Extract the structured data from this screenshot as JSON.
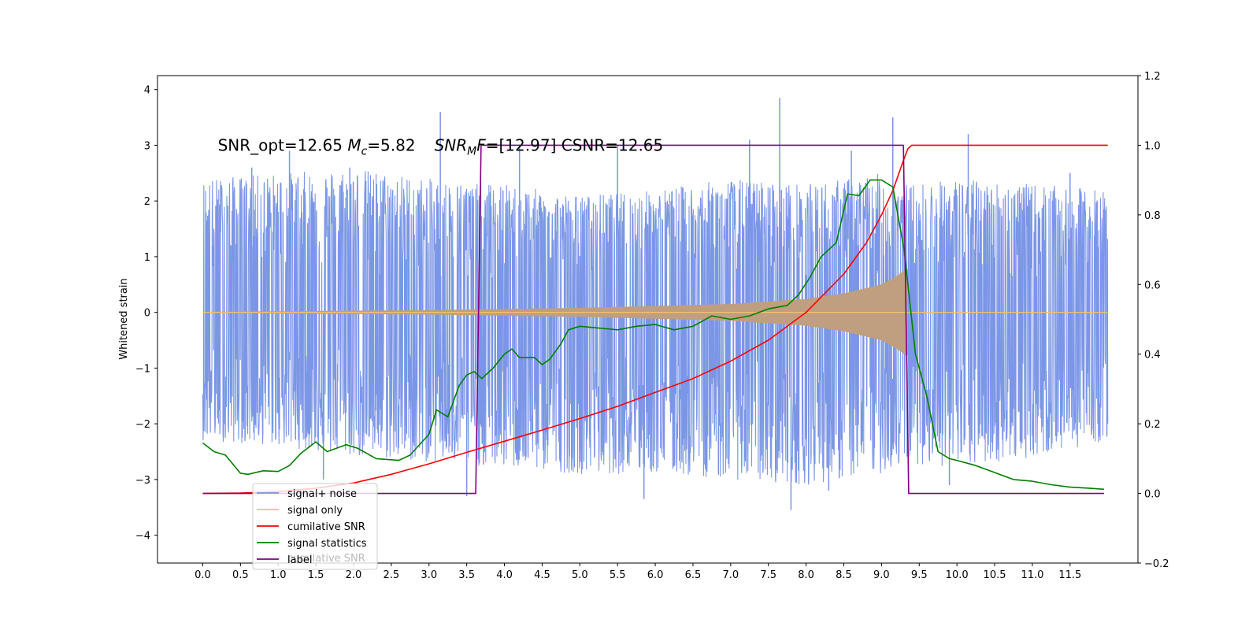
{
  "chart_data": {
    "type": "line",
    "title": "",
    "xlabel": "",
    "ylabel": "Whitened strain",
    "ylabel_right": "",
    "xlim": [
      -0.6,
      12.4
    ],
    "ylim": [
      -4.5,
      4.25
    ],
    "ylim_right": [
      -0.2,
      1.2
    ],
    "x_ticks": [
      0.0,
      0.5,
      1.0,
      1.5,
      2.0,
      2.5,
      3.0,
      3.5,
      4.0,
      4.5,
      5.0,
      5.5,
      6.0,
      6.5,
      7.0,
      7.5,
      8.0,
      8.5,
      9.0,
      9.5,
      10.0,
      10.5,
      11.0,
      11.5
    ],
    "x_tick_labels": [
      "0.0",
      "0.5",
      "1.0",
      "1.5",
      "2.0",
      "2.5",
      "3.0",
      "3.5",
      "4.0",
      "4.5",
      "5.0",
      "5.5",
      "6.0",
      "6.5",
      "7.0",
      "7.5",
      "8.0",
      "8.5",
      "9.0",
      "9.5",
      "10.0",
      "10.5",
      "11.0",
      "11.5"
    ],
    "y_ticks": [
      -4,
      -3,
      -2,
      -1,
      0,
      1,
      2,
      3,
      4
    ],
    "y_tick_labels": [
      "−4",
      "−3",
      "−2",
      "−1",
      "0",
      "1",
      "2",
      "3",
      "4"
    ],
    "y_ticks_right": [
      -0.2,
      0.0,
      0.2,
      0.4,
      0.6,
      0.8,
      1.0,
      1.2
    ],
    "y_tick_labels_right": [
      "−0.2",
      "0.0",
      "0.2",
      "0.4",
      "0.6",
      "0.8",
      "1.0",
      "1.2"
    ],
    "annotation": {
      "x": 0.2,
      "y": 3.0,
      "prefix": "SNR_opt=12.65 ",
      "mc_symbol": "M",
      "mc_sub": "c",
      "mc_value": "=5.82",
      "snr_symbol": "SNR",
      "snr_sub": "M",
      "snr_symbol2": "F",
      "snr_value": "=[12.97] CSNR=12.65"
    },
    "grid": false,
    "legend_position": "lower-left",
    "series": [
      {
        "name": "signal+ noise",
        "axis": "left",
        "color": "#7b96e6",
        "kind": "noise-envelope",
        "x_range": [
          0.0,
          12.0
        ],
        "envelope_x": [
          0.0,
          1.0,
          2.0,
          3.0,
          4.0,
          5.0,
          6.0,
          7.0,
          8.0,
          9.0,
          9.35,
          10.0,
          11.0,
          12.0
        ],
        "envelope_upper": [
          2.4,
          2.5,
          2.6,
          2.4,
          2.3,
          2.1,
          2.2,
          2.4,
          2.3,
          2.5,
          2.3,
          2.4,
          2.3,
          2.2
        ],
        "envelope_lower": [
          -2.3,
          -2.4,
          -2.6,
          -2.7,
          -2.8,
          -2.9,
          -2.9,
          -3.0,
          -3.1,
          -2.9,
          -2.7,
          -2.8,
          -2.6,
          -2.3
        ],
        "peaks": [
          {
            "x": 0.65,
            "y": 2.6
          },
          {
            "x": 1.15,
            "y": 2.9
          },
          {
            "x": 1.95,
            "y": 2.6
          },
          {
            "x": 3.15,
            "y": 3.6
          },
          {
            "x": 4.2,
            "y": 3.0
          },
          {
            "x": 5.5,
            "y": 3.0
          },
          {
            "x": 7.25,
            "y": 3.1
          },
          {
            "x": 7.65,
            "y": 3.85
          },
          {
            "x": 8.6,
            "y": 2.9
          },
          {
            "x": 9.15,
            "y": 3.5
          },
          {
            "x": 10.15,
            "y": 3.2
          },
          {
            "x": 11.5,
            "y": 2.5
          },
          {
            "x": 3.5,
            "y": -3.3
          },
          {
            "x": 5.85,
            "y": -3.35
          },
          {
            "x": 7.8,
            "y": -3.55
          },
          {
            "x": 8.3,
            "y": -3.2
          },
          {
            "x": 9.9,
            "y": -3.1
          },
          {
            "x": 1.6,
            "y": -3.0
          }
        ]
      },
      {
        "name": "signal only",
        "axis": "left",
        "color": "#f5c06a",
        "kind": "chirp",
        "x_range": [
          0.0,
          12.0
        ],
        "chirp_end": 9.35,
        "amp_x": [
          0.0,
          3.0,
          5.0,
          7.0,
          8.0,
          8.5,
          9.0,
          9.2,
          9.33
        ],
        "amp": [
          0.01,
          0.04,
          0.08,
          0.15,
          0.24,
          0.34,
          0.5,
          0.65,
          0.78
        ]
      },
      {
        "name": "cumilative SNR",
        "axis": "right",
        "color": "#ff0000",
        "x": [
          0.0,
          0.5,
          1.0,
          1.5,
          2.0,
          2.5,
          3.0,
          3.5,
          4.0,
          4.5,
          5.0,
          5.5,
          6.0,
          6.5,
          7.0,
          7.5,
          8.0,
          8.5,
          8.8,
          9.0,
          9.15,
          9.28,
          9.35,
          9.4,
          12.0
        ],
        "y": [
          0.0,
          0.001,
          0.005,
          0.015,
          0.03,
          0.055,
          0.085,
          0.118,
          0.15,
          0.182,
          0.215,
          0.25,
          0.29,
          0.33,
          0.38,
          0.44,
          0.52,
          0.63,
          0.72,
          0.8,
          0.87,
          0.95,
          0.99,
          1.0,
          1.0
        ]
      },
      {
        "name": "signal statistics",
        "axis": "right",
        "color": "#008000",
        "x": [
          0.0,
          0.15,
          0.3,
          0.5,
          0.6,
          0.8,
          1.0,
          1.15,
          1.3,
          1.5,
          1.65,
          1.9,
          2.05,
          2.3,
          2.6,
          2.75,
          3.0,
          3.1,
          3.25,
          3.4,
          3.5,
          3.6,
          3.7,
          3.85,
          4.0,
          4.1,
          4.2,
          4.4,
          4.5,
          4.6,
          4.75,
          4.85,
          5.0,
          5.25,
          5.5,
          5.75,
          6.0,
          6.25,
          6.5,
          6.75,
          7.0,
          7.25,
          7.5,
          7.75,
          7.9,
          8.05,
          8.2,
          8.4,
          8.55,
          8.7,
          8.85,
          9.0,
          9.15,
          9.3,
          9.45,
          9.6,
          9.75,
          9.9,
          10.0,
          10.25,
          10.5,
          10.75,
          11.0,
          11.25,
          11.5,
          11.75,
          11.95
        ],
        "y": [
          0.145,
          0.12,
          0.11,
          0.058,
          0.055,
          0.065,
          0.063,
          0.08,
          0.115,
          0.148,
          0.12,
          0.14,
          0.13,
          0.1,
          0.095,
          0.11,
          0.17,
          0.24,
          0.22,
          0.31,
          0.34,
          0.35,
          0.33,
          0.36,
          0.4,
          0.415,
          0.39,
          0.39,
          0.37,
          0.385,
          0.43,
          0.47,
          0.48,
          0.475,
          0.47,
          0.48,
          0.485,
          0.47,
          0.48,
          0.51,
          0.5,
          0.51,
          0.53,
          0.54,
          0.57,
          0.62,
          0.68,
          0.72,
          0.86,
          0.855,
          0.9,
          0.9,
          0.88,
          0.7,
          0.4,
          0.28,
          0.12,
          0.1,
          0.095,
          0.08,
          0.06,
          0.04,
          0.035,
          0.025,
          0.018,
          0.015,
          0.012
        ]
      },
      {
        "name": "label",
        "axis": "right",
        "color": "#800080",
        "x": [
          0.0,
          3.62,
          3.69,
          9.29,
          9.36,
          11.95
        ],
        "y": [
          0.0,
          0.0,
          1.0,
          1.0,
          0.0,
          0.0
        ]
      }
    ],
    "legend_overflow_text": "cumilative SNR"
  }
}
